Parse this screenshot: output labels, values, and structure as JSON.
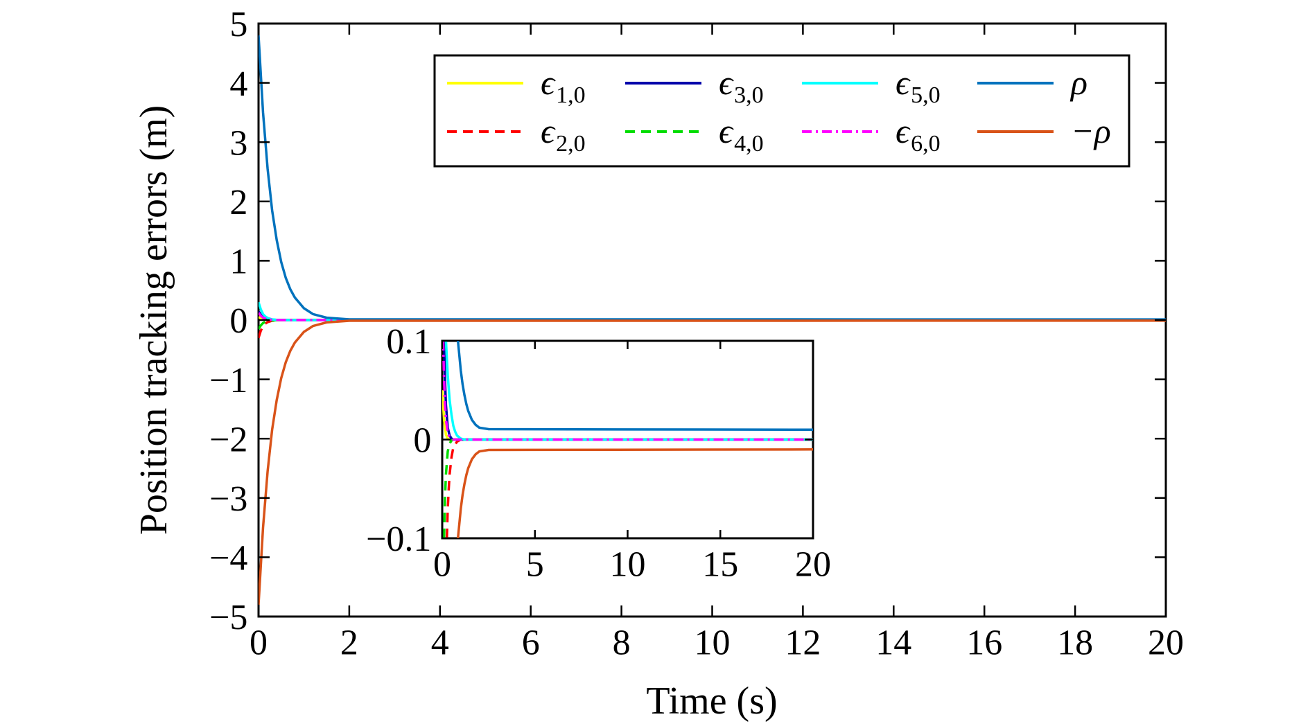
{
  "chart_data": [
    {
      "type": "line",
      "title": "",
      "xlabel": "Time (s)",
      "ylabel": "Position tracking errors (m)",
      "xlim": [
        0,
        20
      ],
      "ylim": [
        -5,
        5
      ],
      "xticks": [
        0,
        2,
        4,
        6,
        8,
        10,
        12,
        14,
        16,
        18,
        20
      ],
      "yticks": [
        5,
        4,
        3,
        2,
        1,
        0,
        -1,
        -2,
        -3,
        -4,
        -5
      ],
      "xtick_labels": [
        "0",
        "2",
        "4",
        "6",
        "8",
        "10",
        "12",
        "14",
        "16",
        "18",
        "20"
      ],
      "ytick_labels": [
        "5",
        "4",
        "3",
        "2",
        "1",
        "0",
        "−1",
        "−2",
        "−3",
        "−4",
        "−5"
      ],
      "grid": false,
      "legend_position": "top-right",
      "series": [
        {
          "name": "ϵ",
          "sub": "1,0",
          "color": "#FFFF00",
          "dash": "solid",
          "x": [
            0,
            0.05,
            0.1,
            0.15,
            0.2,
            0.3,
            0.4,
            0.6,
            1.0,
            20
          ],
          "values": [
            0.05,
            0.03,
            0.02,
            0.01,
            0.005,
            0.002,
            0,
            0,
            0,
            0
          ]
        },
        {
          "name": "ϵ",
          "sub": "2,0",
          "color": "#FF0000",
          "dash": "dashed",
          "x": [
            0,
            0.05,
            0.1,
            0.15,
            0.2,
            0.3,
            0.4,
            0.6,
            1.0,
            20
          ],
          "values": [
            -0.3,
            -0.18,
            -0.1,
            -0.06,
            -0.035,
            -0.012,
            -0.004,
            0,
            0,
            0
          ]
        },
        {
          "name": "ϵ",
          "sub": "3,0",
          "color": "#0000AA",
          "dash": "solid",
          "x": [
            0,
            0.05,
            0.1,
            0.15,
            0.2,
            0.3,
            0.4,
            0.6,
            1.0,
            20
          ],
          "values": [
            0.15,
            0.09,
            0.05,
            0.03,
            0.018,
            0.006,
            0.002,
            0,
            0,
            0
          ]
        },
        {
          "name": "ϵ",
          "sub": "4,0",
          "color": "#00DD00",
          "dash": "dashed",
          "x": [
            0,
            0.05,
            0.1,
            0.15,
            0.2,
            0.3,
            0.4,
            0.6,
            1.0,
            20
          ],
          "values": [
            -0.15,
            -0.09,
            -0.05,
            -0.03,
            -0.018,
            -0.006,
            -0.002,
            0,
            0,
            0
          ]
        },
        {
          "name": "ϵ",
          "sub": "5,0",
          "color": "#00FFFF",
          "dash": "solid",
          "x": [
            0,
            0.05,
            0.1,
            0.15,
            0.2,
            0.3,
            0.4,
            0.6,
            1.0,
            20
          ],
          "values": [
            0.3,
            0.18,
            0.1,
            0.06,
            0.035,
            0.012,
            0.004,
            0,
            0,
            0
          ]
        },
        {
          "name": "ϵ",
          "sub": "6,0",
          "color": "#FF00FF",
          "dash": "dashdot",
          "x": [
            0,
            0.05,
            0.1,
            0.15,
            0.2,
            0.3,
            0.4,
            0.6,
            1.0,
            20
          ],
          "values": [
            0.12,
            0.07,
            0.04,
            0.024,
            0.014,
            0.005,
            0.0015,
            0,
            0,
            0
          ]
        },
        {
          "name": "ρ",
          "sub": "",
          "color": "#0072BD",
          "dash": "solid",
          "x": [
            0,
            0.1,
            0.2,
            0.3,
            0.4,
            0.5,
            0.6,
            0.7,
            0.8,
            1.0,
            1.2,
            1.5,
            2.0,
            20
          ],
          "values": [
            4.8,
            3.5,
            2.55,
            1.85,
            1.35,
            0.98,
            0.71,
            0.52,
            0.38,
            0.2,
            0.1,
            0.04,
            0.012,
            0.01
          ]
        },
        {
          "name": "−ρ",
          "sub": "",
          "color": "#D95319",
          "dash": "solid",
          "x": [
            0,
            0.1,
            0.2,
            0.3,
            0.4,
            0.5,
            0.6,
            0.7,
            0.8,
            1.0,
            1.2,
            1.5,
            2.0,
            20
          ],
          "values": [
            -4.8,
            -3.5,
            -2.55,
            -1.85,
            -1.35,
            -0.98,
            -0.71,
            -0.52,
            -0.38,
            -0.2,
            -0.1,
            -0.04,
            -0.012,
            -0.01
          ]
        }
      ]
    },
    {
      "type": "line",
      "title": "",
      "xlabel": "",
      "ylabel": "",
      "xlim": [
        0,
        20
      ],
      "ylim": [
        -0.1,
        0.1
      ],
      "xticks": [
        0,
        5,
        10,
        15,
        20
      ],
      "yticks": [
        0.1,
        0,
        -0.1
      ],
      "xtick_labels": [
        "0",
        "5",
        "10",
        "15",
        "20"
      ],
      "ytick_labels": [
        "0.1",
        "0",
        "−0.1"
      ],
      "grid": false,
      "series": [
        {
          "name": "ϵ",
          "sub": "1,0",
          "color": "#FFFF00",
          "dash": "solid",
          "x": [
            0,
            0.1,
            0.2,
            0.3,
            0.4,
            0.6,
            1.0,
            20
          ],
          "values": [
            0.05,
            0.02,
            0.005,
            0.001,
            0,
            0,
            0,
            0
          ]
        },
        {
          "name": "ϵ",
          "sub": "2,0",
          "color": "#FF0000",
          "dash": "dashed",
          "x": [
            0.25,
            0.3,
            0.35,
            0.4,
            0.5,
            0.6,
            0.8,
            1.0,
            20
          ],
          "values": [
            -0.1,
            -0.07,
            -0.05,
            -0.035,
            -0.018,
            -0.008,
            -0.002,
            0,
            0
          ]
        },
        {
          "name": "ϵ",
          "sub": "3,0",
          "color": "#0000AA",
          "dash": "solid",
          "x": [
            0.1,
            0.15,
            0.2,
            0.3,
            0.4,
            0.5,
            0.6,
            0.8,
            1.0,
            20
          ],
          "values": [
            0.1,
            0.06,
            0.035,
            0.012,
            0.004,
            0.001,
            0,
            0,
            0,
            0
          ]
        },
        {
          "name": "ϵ",
          "sub": "4,0",
          "color": "#00DD00",
          "dash": "dashed",
          "x": [
            0.1,
            0.15,
            0.2,
            0.3,
            0.4,
            0.5,
            0.6,
            0.8,
            1.0,
            20
          ],
          "values": [
            -0.1,
            -0.06,
            -0.035,
            -0.012,
            -0.004,
            -0.001,
            0,
            0,
            0,
            0
          ]
        },
        {
          "name": "ϵ",
          "sub": "5,0",
          "color": "#00FFFF",
          "dash": "solid",
          "x": [
            0.2,
            0.3,
            0.4,
            0.5,
            0.6,
            0.7,
            0.8,
            1.0,
            1.2,
            20
          ],
          "values": [
            0.1,
            0.065,
            0.04,
            0.025,
            0.014,
            0.008,
            0.004,
            0.001,
            0,
            0
          ]
        },
        {
          "name": "ϵ",
          "sub": "6,0",
          "color": "#FF00FF",
          "dash": "dashdot",
          "x": [
            0.05,
            0.1,
            0.15,
            0.2,
            0.3,
            0.4,
            0.6,
            0.8,
            20
          ],
          "values": [
            0.1,
            0.06,
            0.035,
            0.02,
            0.007,
            0.002,
            0,
            0,
            0
          ]
        },
        {
          "name": "ρ",
          "sub": "",
          "color": "#0072BD",
          "dash": "solid",
          "x": [
            0.85,
            1.0,
            1.1,
            1.2,
            1.3,
            1.4,
            1.6,
            1.8,
            2.0,
            2.5,
            20
          ],
          "values": [
            0.1,
            0.07,
            0.056,
            0.045,
            0.036,
            0.029,
            0.02,
            0.015,
            0.012,
            0.0105,
            0.01
          ]
        },
        {
          "name": "−ρ",
          "sub": "",
          "color": "#D95319",
          "dash": "solid",
          "x": [
            0.85,
            1.0,
            1.1,
            1.2,
            1.3,
            1.4,
            1.6,
            1.8,
            2.0,
            2.5,
            20
          ],
          "values": [
            -0.1,
            -0.07,
            -0.056,
            -0.045,
            -0.036,
            -0.029,
            -0.02,
            -0.015,
            -0.012,
            -0.0105,
            -0.01
          ]
        }
      ]
    }
  ],
  "legend": {
    "columns": [
      [
        {
          "symbol": "ϵ",
          "sub": "1,0",
          "color": "#FFFF00",
          "dash": "solid"
        },
        {
          "symbol": "ϵ",
          "sub": "2,0",
          "color": "#FF0000",
          "dash": "dashed"
        }
      ],
      [
        {
          "symbol": "ϵ",
          "sub": "3,0",
          "color": "#0000AA",
          "dash": "solid"
        },
        {
          "symbol": "ϵ",
          "sub": "4,0",
          "color": "#00DD00",
          "dash": "dashed"
        }
      ],
      [
        {
          "symbol": "ϵ",
          "sub": "5,0",
          "color": "#00FFFF",
          "dash": "solid"
        },
        {
          "symbol": "ϵ",
          "sub": "6,0",
          "color": "#FF00FF",
          "dash": "dashdot"
        }
      ],
      [
        {
          "symbol": "ρ",
          "sub": "",
          "color": "#0072BD",
          "dash": "solid"
        },
        {
          "symbol": "−ρ",
          "sub": "",
          "color": "#D95319",
          "dash": "solid"
        }
      ]
    ]
  }
}
